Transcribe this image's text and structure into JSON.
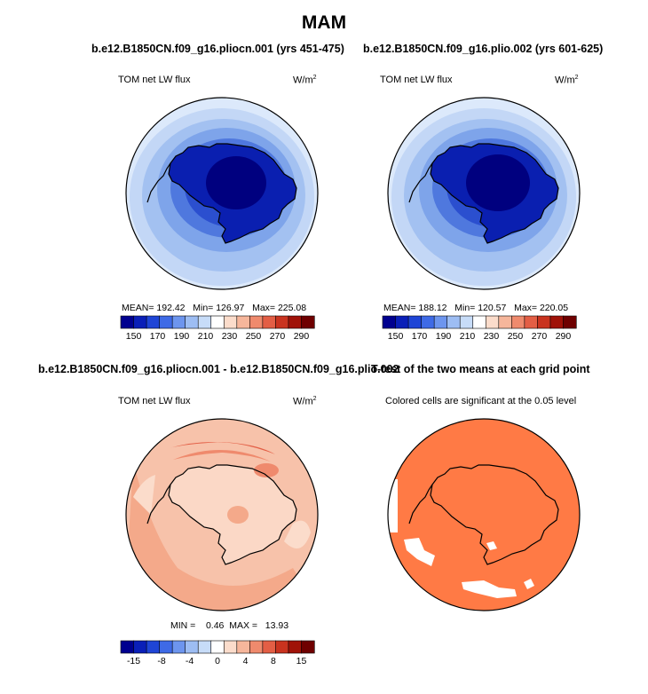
{
  "page": {
    "title": "MAM"
  },
  "panels": {
    "top_left": {
      "case_title": "b.e12.B1850CN.f09_g16.pliocn.001 (yrs 451-475)",
      "label": "TOM net LW flux",
      "units_base": "W/m",
      "units_exp": "2",
      "stats": "MEAN= 192.42   Min= 126.97   Max= 225.08"
    },
    "top_right": {
      "case_title": "b.e12.B1850CN.f09_g16.plio.002 (yrs 601-625)",
      "label": "TOM net LW flux",
      "units_base": "W/m",
      "units_exp": "2",
      "stats": "MEAN= 188.12   Min= 120.57   Max= 220.05"
    },
    "bottom_left": {
      "case_title": "b.e12.B1850CN.f09_g16.pliocn.001 - b.e12.B1850CN.f09_g16.plio.002",
      "label": "TOM net LW flux",
      "units_base": "W/m",
      "units_exp": "2",
      "stats": "MIN =    0.46  MAX =   13.93"
    },
    "bottom_right": {
      "case_title": "T-test of the two means at each grid point",
      "label": "Colored cells are significant at the 0.05 level"
    }
  },
  "chart_data": [
    {
      "type": "heatmap",
      "projection": "south-polar-stereographic",
      "title": "b.e12.B1850CN.f09_g16.pliocn.001 (yrs 451-475)",
      "variable": "TOM net LW flux",
      "units": "W/m2",
      "mean": 192.42,
      "min": 126.97,
      "max": 225.08,
      "colorbar_ticks": [
        "150",
        "170",
        "190",
        "210",
        "230",
        "250",
        "270",
        "290"
      ],
      "colorbar_colors": [
        "#00008f",
        "#0a1fb8",
        "#1f45d6",
        "#3e6ae6",
        "#6d95ee",
        "#9dbdf3",
        "#c7dcf8",
        "#ffffff",
        "#fbdccb",
        "#f6b69b",
        "#ef8a6d",
        "#e35e45",
        "#c9331f",
        "#a01208",
        "#6f0000"
      ]
    },
    {
      "type": "heatmap",
      "projection": "south-polar-stereographic",
      "title": "b.e12.B1850CN.f09_g16.plio.002 (yrs 601-625)",
      "variable": "TOM net LW flux",
      "units": "W/m2",
      "mean": 188.12,
      "min": 120.57,
      "max": 220.05,
      "colorbar_ticks": [
        "150",
        "170",
        "190",
        "210",
        "230",
        "250",
        "270",
        "290"
      ],
      "colorbar_colors": [
        "#00008f",
        "#0a1fb8",
        "#1f45d6",
        "#3e6ae6",
        "#6d95ee",
        "#9dbdf3",
        "#c7dcf8",
        "#ffffff",
        "#fbdccb",
        "#f6b69b",
        "#ef8a6d",
        "#e35e45",
        "#c9331f",
        "#a01208",
        "#6f0000"
      ]
    },
    {
      "type": "heatmap",
      "projection": "south-polar-stereographic",
      "title": "b.e12.B1850CN.f09_g16.pliocn.001 - b.e12.B1850CN.f09_g16.plio.002",
      "variable": "TOM net LW flux",
      "units": "W/m2",
      "min": 0.46,
      "max": 13.93,
      "colorbar_ticks": [
        "-15",
        "-8",
        "-4",
        "0",
        "4",
        "8",
        "15"
      ],
      "colorbar_colors": [
        "#00008f",
        "#0a1fb8",
        "#1f45d6",
        "#3e6ae6",
        "#6d95ee",
        "#9dbdf3",
        "#c7dcf8",
        "#ffffff",
        "#fbdccb",
        "#f6b69b",
        "#ef8a6d",
        "#e35e45",
        "#c9331f",
        "#a01208",
        "#6f0000"
      ]
    },
    {
      "type": "heatmap",
      "projection": "south-polar-stereographic",
      "title": "T-test of the two means at each grid point",
      "note": "Colored cells are significant at the 0.05 level",
      "significant_color": "#ff7a45"
    }
  ]
}
